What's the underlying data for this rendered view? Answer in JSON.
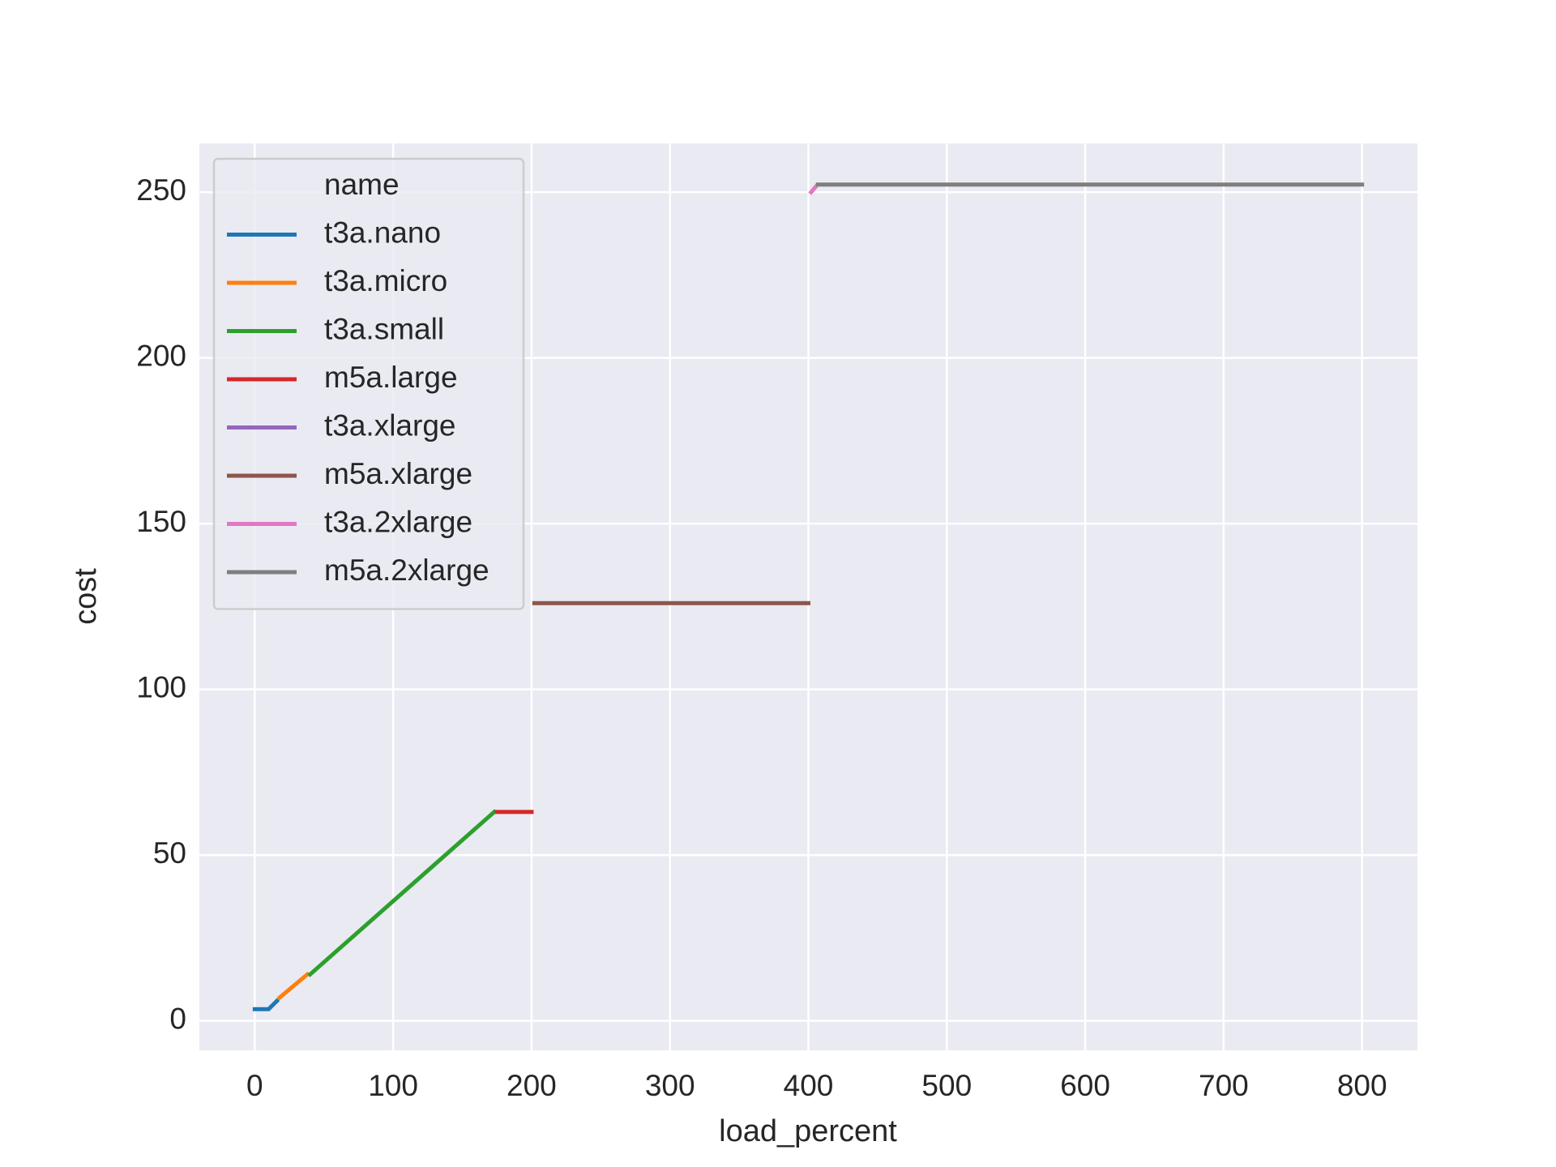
{
  "chart_data": {
    "type": "line",
    "xlabel": "load_percent",
    "ylabel": "cost",
    "legend_title": "name",
    "legend_loc": "upper left",
    "grid": true,
    "xlim": [
      -40,
      840
    ],
    "ylim": [
      -8.9,
      264.7
    ],
    "xticks": [
      0,
      100,
      200,
      300,
      400,
      500,
      600,
      700,
      800
    ],
    "yticks": [
      0,
      50,
      100,
      150,
      200,
      250
    ],
    "series": [
      {
        "name": "t3a.nano",
        "color": "#1f77b4",
        "x": [
          0,
          10,
          16
        ],
        "values": [
          3.5,
          3.5,
          6
        ]
      },
      {
        "name": "t3a.micro",
        "color": "#ff7f0e",
        "x": [
          18,
          38
        ],
        "values": [
          7,
          14
        ]
      },
      {
        "name": "t3a.small",
        "color": "#2ca02c",
        "x": [
          40,
          173
        ],
        "values": [
          14,
          63
        ]
      },
      {
        "name": "m5a.large",
        "color": "#d62728",
        "x": [
          175,
          200
        ],
        "values": [
          63,
          63
        ]
      },
      {
        "name": "t3a.xlarge",
        "color": "#9467bd",
        "x": [],
        "values": []
      },
      {
        "name": "m5a.xlarge",
        "color": "#8c564b",
        "x": [
          202,
          400
        ],
        "values": [
          126,
          126
        ]
      },
      {
        "name": "t3a.2xlarge",
        "color": "#e377c2",
        "x": [
          402,
          406
        ],
        "values": [
          250,
          252
        ]
      },
      {
        "name": "m5a.2xlarge",
        "color": "#7f7f7f",
        "x": [
          407,
          800
        ],
        "values": [
          252.3,
          252.3
        ]
      }
    ]
  }
}
